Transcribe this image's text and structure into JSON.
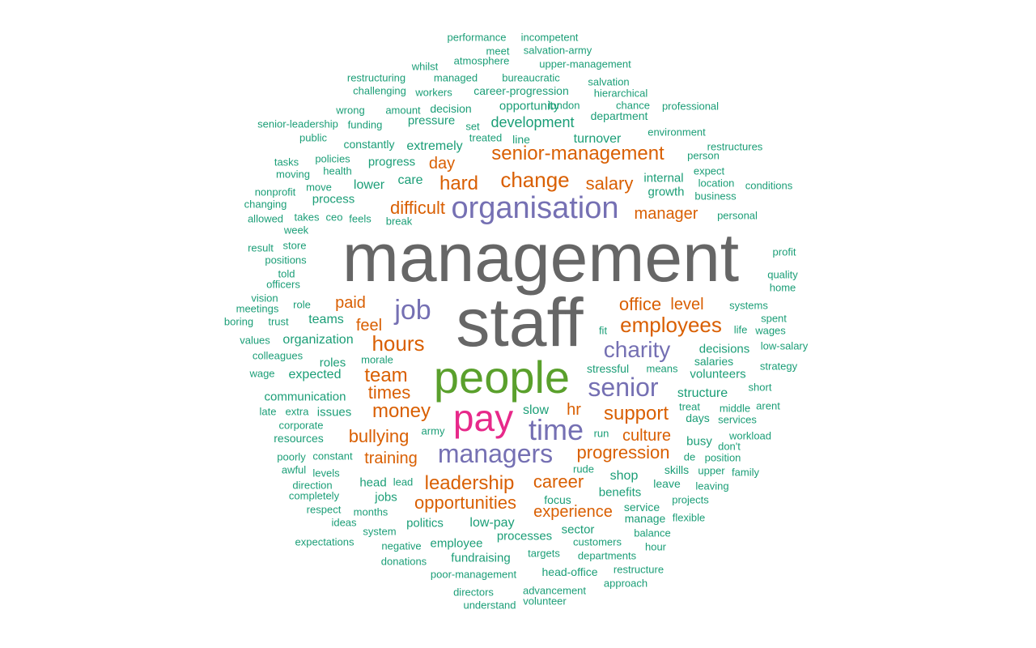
{
  "colors": {
    "gray": "#666666",
    "green": "#5aa02c",
    "magenta": "#e7298a",
    "purple": "#7570b3",
    "orange": "#d95f02",
    "teal": "#1b9e77"
  },
  "words": [
    {
      "text": "management",
      "color": "gray"
    },
    {
      "text": "staff",
      "color": "gray"
    },
    {
      "text": "people",
      "color": "green"
    },
    {
      "text": "pay",
      "color": "magenta"
    },
    {
      "text": "organisation",
      "color": "purple"
    },
    {
      "text": "time",
      "color": "purple"
    },
    {
      "text": "managers",
      "color": "purple"
    },
    {
      "text": "senior",
      "color": "purple"
    },
    {
      "text": "job",
      "color": "purple"
    },
    {
      "text": "charity",
      "color": "purple"
    },
    {
      "text": "senior-management",
      "color": "orange"
    },
    {
      "text": "change",
      "color": "orange"
    },
    {
      "text": "hard",
      "color": "orange"
    },
    {
      "text": "salary",
      "color": "orange"
    },
    {
      "text": "difficult",
      "color": "orange"
    },
    {
      "text": "manager",
      "color": "orange"
    },
    {
      "text": "employees",
      "color": "orange"
    },
    {
      "text": "office",
      "color": "orange"
    },
    {
      "text": "level",
      "color": "orange"
    },
    {
      "text": "hours",
      "color": "orange"
    },
    {
      "text": "paid",
      "color": "orange"
    },
    {
      "text": "feel",
      "color": "orange"
    },
    {
      "text": "team",
      "color": "orange"
    },
    {
      "text": "times",
      "color": "orange"
    },
    {
      "text": "money",
      "color": "orange"
    },
    {
      "text": "hr",
      "color": "orange"
    },
    {
      "text": "support",
      "color": "orange"
    },
    {
      "text": "culture",
      "color": "orange"
    },
    {
      "text": "progression",
      "color": "orange"
    },
    {
      "text": "bullying",
      "color": "orange"
    },
    {
      "text": "training",
      "color": "orange"
    },
    {
      "text": "leadership",
      "color": "orange"
    },
    {
      "text": "career",
      "color": "orange"
    },
    {
      "text": "opportunities",
      "color": "orange"
    },
    {
      "text": "experience",
      "color": "orange"
    },
    {
      "text": "day",
      "color": "orange"
    },
    {
      "text": "performance",
      "color": "teal"
    },
    {
      "text": "incompetent",
      "color": "teal"
    },
    {
      "text": "meet",
      "color": "teal"
    },
    {
      "text": "salvation-army",
      "color": "teal"
    },
    {
      "text": "whilst",
      "color": "teal"
    },
    {
      "text": "atmosphere",
      "color": "teal"
    },
    {
      "text": "upper-management",
      "color": "teal"
    },
    {
      "text": "restructuring",
      "color": "teal"
    },
    {
      "text": "managed",
      "color": "teal"
    },
    {
      "text": "bureaucratic",
      "color": "teal"
    },
    {
      "text": "salvation",
      "color": "teal"
    },
    {
      "text": "challenging",
      "color": "teal"
    },
    {
      "text": "workers",
      "color": "teal"
    },
    {
      "text": "career-progression",
      "color": "teal"
    },
    {
      "text": "hierarchical",
      "color": "teal"
    },
    {
      "text": "wrong",
      "color": "teal"
    },
    {
      "text": "amount",
      "color": "teal"
    },
    {
      "text": "decision",
      "color": "teal"
    },
    {
      "text": "opportunity",
      "color": "teal"
    },
    {
      "text": "london",
      "color": "teal"
    },
    {
      "text": "chance",
      "color": "teal"
    },
    {
      "text": "professional",
      "color": "teal"
    },
    {
      "text": "senior-leadership",
      "color": "teal"
    },
    {
      "text": "funding",
      "color": "teal"
    },
    {
      "text": "pressure",
      "color": "teal"
    },
    {
      "text": "set",
      "color": "teal"
    },
    {
      "text": "development",
      "color": "teal"
    },
    {
      "text": "department",
      "color": "teal"
    },
    {
      "text": "public",
      "color": "teal"
    },
    {
      "text": "treated",
      "color": "teal"
    },
    {
      "text": "line",
      "color": "teal"
    },
    {
      "text": "constantly",
      "color": "teal"
    },
    {
      "text": "extremely",
      "color": "teal"
    },
    {
      "text": "turnover",
      "color": "teal"
    },
    {
      "text": "environment",
      "color": "teal"
    },
    {
      "text": "restructures",
      "color": "teal"
    },
    {
      "text": "tasks",
      "color": "teal"
    },
    {
      "text": "policies",
      "color": "teal"
    },
    {
      "text": "progress",
      "color": "teal"
    },
    {
      "text": "person",
      "color": "teal"
    },
    {
      "text": "moving",
      "color": "teal"
    },
    {
      "text": "health",
      "color": "teal"
    },
    {
      "text": "expect",
      "color": "teal"
    },
    {
      "text": "care",
      "color": "teal"
    },
    {
      "text": "internal",
      "color": "teal"
    },
    {
      "text": "location",
      "color": "teal"
    },
    {
      "text": "conditions",
      "color": "teal"
    },
    {
      "text": "nonprofit",
      "color": "teal"
    },
    {
      "text": "move",
      "color": "teal"
    },
    {
      "text": "lower",
      "color": "teal"
    },
    {
      "text": "growth",
      "color": "teal"
    },
    {
      "text": "business",
      "color": "teal"
    },
    {
      "text": "changing",
      "color": "teal"
    },
    {
      "text": "process",
      "color": "teal"
    },
    {
      "text": "allowed",
      "color": "teal"
    },
    {
      "text": "takes",
      "color": "teal"
    },
    {
      "text": "ceo",
      "color": "teal"
    },
    {
      "text": "feels",
      "color": "teal"
    },
    {
      "text": "break",
      "color": "teal"
    },
    {
      "text": "personal",
      "color": "teal"
    },
    {
      "text": "week",
      "color": "teal"
    },
    {
      "text": "result",
      "color": "teal"
    },
    {
      "text": "store",
      "color": "teal"
    },
    {
      "text": "profit",
      "color": "teal"
    },
    {
      "text": "positions",
      "color": "teal"
    },
    {
      "text": "told",
      "color": "teal"
    },
    {
      "text": "quality",
      "color": "teal"
    },
    {
      "text": "officers",
      "color": "teal"
    },
    {
      "text": "home",
      "color": "teal"
    },
    {
      "text": "vision",
      "color": "teal"
    },
    {
      "text": "meetings",
      "color": "teal"
    },
    {
      "text": "role",
      "color": "teal"
    },
    {
      "text": "systems",
      "color": "teal"
    },
    {
      "text": "boring",
      "color": "teal"
    },
    {
      "text": "trust",
      "color": "teal"
    },
    {
      "text": "teams",
      "color": "teal"
    },
    {
      "text": "spent",
      "color": "teal"
    },
    {
      "text": "fit",
      "color": "teal"
    },
    {
      "text": "life",
      "color": "teal"
    },
    {
      "text": "wages",
      "color": "teal"
    },
    {
      "text": "values",
      "color": "teal"
    },
    {
      "text": "organization",
      "color": "teal"
    },
    {
      "text": "decisions",
      "color": "teal"
    },
    {
      "text": "low-salary",
      "color": "teal"
    },
    {
      "text": "colleagues",
      "color": "teal"
    },
    {
      "text": "roles",
      "color": "teal"
    },
    {
      "text": "morale",
      "color": "teal"
    },
    {
      "text": "salaries",
      "color": "teal"
    },
    {
      "text": "strategy",
      "color": "teal"
    },
    {
      "text": "wage",
      "color": "teal"
    },
    {
      "text": "expected",
      "color": "teal"
    },
    {
      "text": "stressful",
      "color": "teal"
    },
    {
      "text": "means",
      "color": "teal"
    },
    {
      "text": "volunteers",
      "color": "teal"
    },
    {
      "text": "short",
      "color": "teal"
    },
    {
      "text": "communication",
      "color": "teal"
    },
    {
      "text": "structure",
      "color": "teal"
    },
    {
      "text": "treat",
      "color": "teal"
    },
    {
      "text": "arent",
      "color": "teal"
    },
    {
      "text": "late",
      "color": "teal"
    },
    {
      "text": "extra",
      "color": "teal"
    },
    {
      "text": "issues",
      "color": "teal"
    },
    {
      "text": "slow",
      "color": "teal"
    },
    {
      "text": "middle",
      "color": "teal"
    },
    {
      "text": "days",
      "color": "teal"
    },
    {
      "text": "services",
      "color": "teal"
    },
    {
      "text": "corporate",
      "color": "teal"
    },
    {
      "text": "army",
      "color": "teal"
    },
    {
      "text": "run",
      "color": "teal"
    },
    {
      "text": "workload",
      "color": "teal"
    },
    {
      "text": "resources",
      "color": "teal"
    },
    {
      "text": "busy",
      "color": "teal"
    },
    {
      "text": "don't",
      "color": "teal"
    },
    {
      "text": "de",
      "color": "teal"
    },
    {
      "text": "position",
      "color": "teal"
    },
    {
      "text": "poorly",
      "color": "teal"
    },
    {
      "text": "constant",
      "color": "teal"
    },
    {
      "text": "awful",
      "color": "teal"
    },
    {
      "text": "rude",
      "color": "teal"
    },
    {
      "text": "skills",
      "color": "teal"
    },
    {
      "text": "upper",
      "color": "teal"
    },
    {
      "text": "family",
      "color": "teal"
    },
    {
      "text": "levels",
      "color": "teal"
    },
    {
      "text": "shop",
      "color": "teal"
    },
    {
      "text": "direction",
      "color": "teal"
    },
    {
      "text": "head",
      "color": "teal"
    },
    {
      "text": "lead",
      "color": "teal"
    },
    {
      "text": "leave",
      "color": "teal"
    },
    {
      "text": "leaving",
      "color": "teal"
    },
    {
      "text": "completely",
      "color": "teal"
    },
    {
      "text": "jobs",
      "color": "teal"
    },
    {
      "text": "benefits",
      "color": "teal"
    },
    {
      "text": "projects",
      "color": "teal"
    },
    {
      "text": "focus",
      "color": "teal"
    },
    {
      "text": "respect",
      "color": "teal"
    },
    {
      "text": "months",
      "color": "teal"
    },
    {
      "text": "service",
      "color": "teal"
    },
    {
      "text": "manage",
      "color": "teal"
    },
    {
      "text": "flexible",
      "color": "teal"
    },
    {
      "text": "ideas",
      "color": "teal"
    },
    {
      "text": "politics",
      "color": "teal"
    },
    {
      "text": "low-pay",
      "color": "teal"
    },
    {
      "text": "system",
      "color": "teal"
    },
    {
      "text": "sector",
      "color": "teal"
    },
    {
      "text": "balance",
      "color": "teal"
    },
    {
      "text": "negative",
      "color": "teal"
    },
    {
      "text": "processes",
      "color": "teal"
    },
    {
      "text": "expectations",
      "color": "teal"
    },
    {
      "text": "employee",
      "color": "teal"
    },
    {
      "text": "customers",
      "color": "teal"
    },
    {
      "text": "hour",
      "color": "teal"
    },
    {
      "text": "targets",
      "color": "teal"
    },
    {
      "text": "departments",
      "color": "teal"
    },
    {
      "text": "donations",
      "color": "teal"
    },
    {
      "text": "fundraising",
      "color": "teal"
    },
    {
      "text": "restructure",
      "color": "teal"
    },
    {
      "text": "poor-management",
      "color": "teal"
    },
    {
      "text": "head-office",
      "color": "teal"
    },
    {
      "text": "approach",
      "color": "teal"
    },
    {
      "text": "advancement",
      "color": "teal"
    },
    {
      "text": "directors",
      "color": "teal"
    },
    {
      "text": "understand",
      "color": "teal"
    },
    {
      "text": "volunteer",
      "color": "teal"
    }
  ]
}
